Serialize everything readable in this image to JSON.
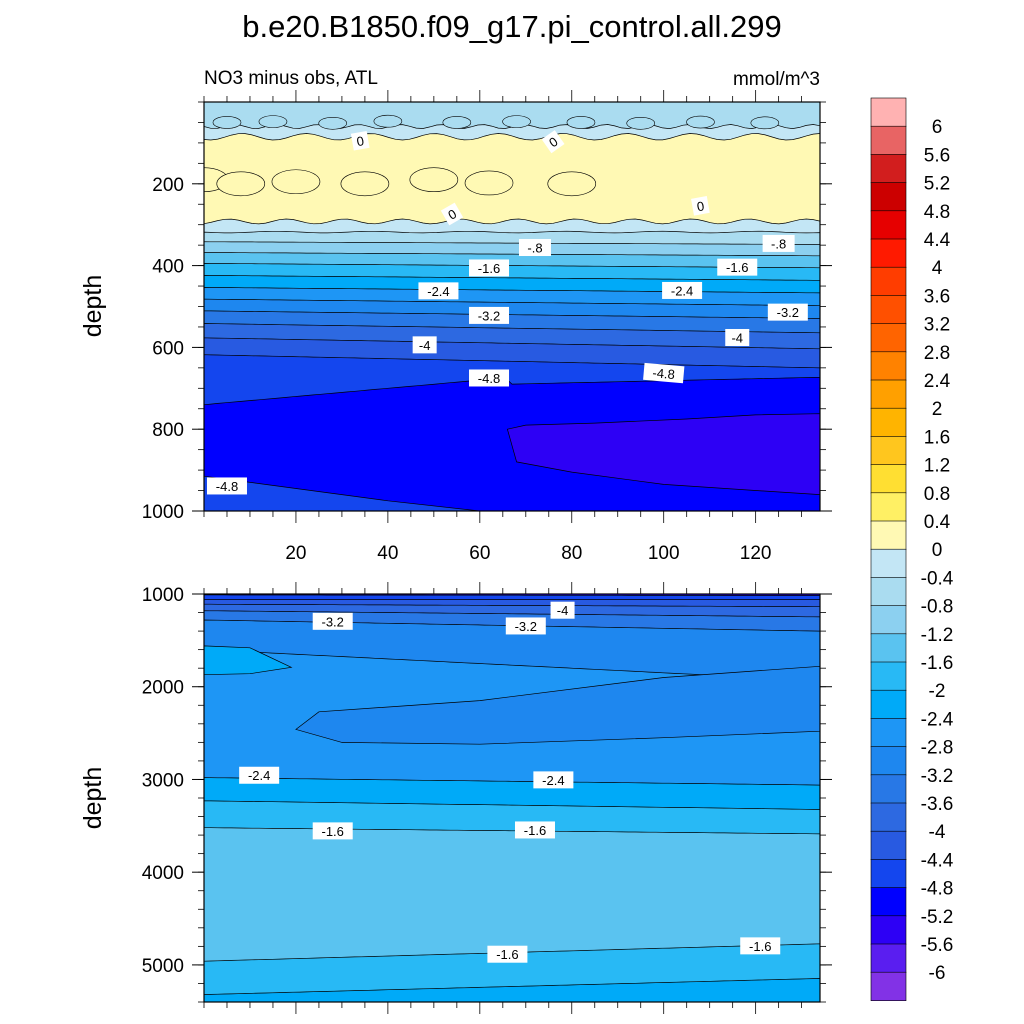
{
  "title": "b.e20.B1850.f09_g17.pi_control.all.299",
  "chart_data": {
    "type": "contour",
    "variable_label": "NO3 minus obs, ATL",
    "units": "mmol/m^3",
    "colorbar": {
      "labels": [
        "6",
        "5.6",
        "5.2",
        "4.8",
        "4.4",
        "4",
        "3.6",
        "3.2",
        "2.8",
        "2.4",
        "2",
        "1.6",
        "1.2",
        "0.8",
        "0.4",
        "0",
        "-0.4",
        "-0.8",
        "-1.2",
        "-1.6",
        "-2",
        "-2.4",
        "-2.8",
        "-3.2",
        "-3.6",
        "-4",
        "-4.4",
        "-4.8",
        "-5.2",
        "-5.6",
        "-6"
      ],
      "colors": [
        "#ffb2b2",
        "#e86464",
        "#d21e1e",
        "#cc0000",
        "#e60000",
        "#ff1a00",
        "#ff3d00",
        "#ff5000",
        "#ff6400",
        "#ff8200",
        "#ffa000",
        "#ffb400",
        "#ffc61e",
        "#ffdf32",
        "#fff064",
        "#fff9b4",
        "#c3e6f5",
        "#aadcf0",
        "#8cd0f0",
        "#5ac3f0",
        "#28b9f5",
        "#00aaf8",
        "#1e96f5",
        "#1e87ef",
        "#2878e6",
        "#2d69e1",
        "#285ae1",
        "#1446ee",
        "#0000ff",
        "#2d00f5",
        "#5a1ef0",
        "#8232e6"
      ]
    },
    "panels": [
      {
        "name": "upper",
        "ylabel": "depth",
        "ylim": [
          0,
          1000
        ],
        "yticks": [
          "200",
          "400",
          "600",
          "800",
          "1000"
        ],
        "xlim": [
          0,
          134
        ],
        "xticks": [
          "20",
          "40",
          "60",
          "80",
          "100",
          "120"
        ],
        "contour_labels": [
          "0",
          "0",
          "0",
          "0",
          "-.8",
          "-.8",
          "-1.6",
          "-1.6",
          "-2.4",
          "-2.4",
          "-3.2",
          "-3.2",
          "-4",
          "-4",
          "-4.8",
          "-4.8",
          "-4.8"
        ]
      },
      {
        "name": "lower",
        "ylabel": "depth",
        "ylim": [
          1000,
          5400
        ],
        "yticks": [
          "1000",
          "2000",
          "3000",
          "4000",
          "5000"
        ],
        "xlim": [
          0,
          134
        ],
        "contour_labels": [
          "-3.2",
          "-3.2",
          "-4",
          "-2.4",
          "-2.4",
          "-1.6",
          "-1.6",
          "-1.6",
          "-1.6"
        ]
      }
    ]
  }
}
